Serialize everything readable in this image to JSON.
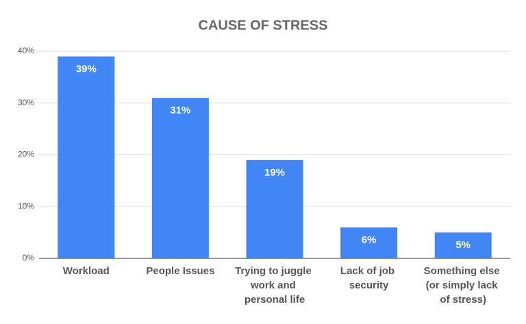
{
  "chart_data": {
    "type": "bar",
    "title": "CAUSE OF STRESS",
    "categories": [
      "Workload",
      "People Issues",
      "Trying to juggle work and personal life",
      "Lack of job security",
      "Something else (or simply lack of stress)"
    ],
    "values": [
      39,
      31,
      19,
      6,
      5
    ],
    "value_labels": [
      "39%",
      "31%",
      "19%",
      "6%",
      "5%"
    ],
    "color": "#4285f4",
    "ylim": [
      0,
      40
    ],
    "yticks": [
      {
        "value": 0,
        "label": "0%"
      },
      {
        "value": 10,
        "label": "10%"
      },
      {
        "value": 20,
        "label": "20%"
      },
      {
        "value": 30,
        "label": "30%"
      },
      {
        "value": 40,
        "label": "40%"
      }
    ],
    "grid": true
  }
}
